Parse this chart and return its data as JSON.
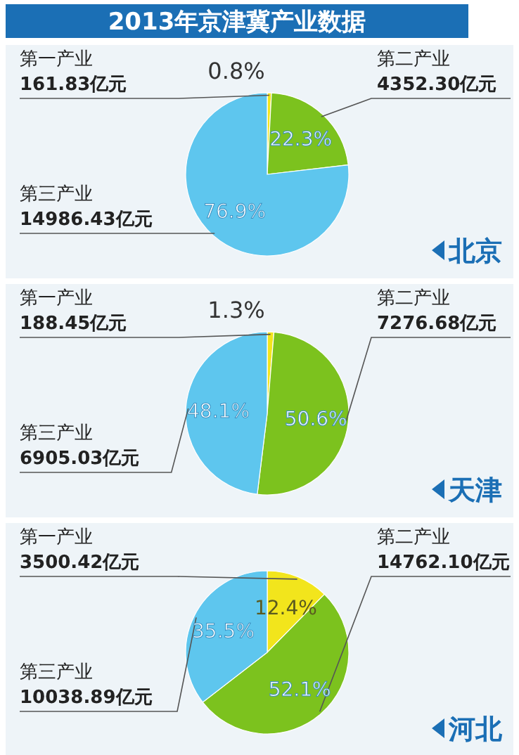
{
  "chart_data": [
    {
      "type": "other",
      "title": "2013年京津冀产业数据"
    },
    {
      "type": "pie",
      "title": "北京",
      "categories": [
        "第一产业",
        "第二产业",
        "第三产业"
      ],
      "values": [
        161.83,
        4352.3,
        14986.43
      ],
      "value_labels": [
        "161.83亿元",
        "4352.30亿元",
        "14986.43亿元"
      ],
      "colors": [
        "#f2e51c",
        "#7cc21e",
        "#5ec6ee"
      ],
      "annotations": [
        {
          "text": "0.8%",
          "x": "第一产业"
        },
        {
          "text": "22.3%",
          "x": "第二产业"
        },
        {
          "text": "76.9%",
          "x": "第三产业"
        }
      ]
    },
    {
      "type": "pie",
      "title": "天津",
      "categories": [
        "第一产业",
        "第二产业",
        "第三产业"
      ],
      "values": [
        188.45,
        7276.68,
        6905.03
      ],
      "value_labels": [
        "188.45亿元",
        "7276.68亿元",
        "6905.03亿元"
      ],
      "colors": [
        "#f2e51c",
        "#7cc21e",
        "#5ec6ee"
      ],
      "annotations": [
        {
          "text": "1.3%",
          "x": "第一产业"
        },
        {
          "text": "50.6%",
          "x": "第二产业"
        },
        {
          "text": "48.1%",
          "x": "第三产业"
        }
      ]
    },
    {
      "type": "pie",
      "title": "河北",
      "categories": [
        "第一产业",
        "第二产业",
        "第三产业"
      ],
      "values": [
        3500.42,
        14762.1,
        10038.89
      ],
      "value_labels": [
        "3500.42亿元",
        "14762.10亿元",
        "10038.89亿元"
      ],
      "colors": [
        "#f2e51c",
        "#7cc21e",
        "#5ec6ee"
      ],
      "annotations": [
        {
          "text": "12.4%",
          "x": "第一产业"
        },
        {
          "text": "52.1%",
          "x": "第二产业"
        },
        {
          "text": "35.5%",
          "x": "第三产业"
        }
      ]
    }
  ]
}
